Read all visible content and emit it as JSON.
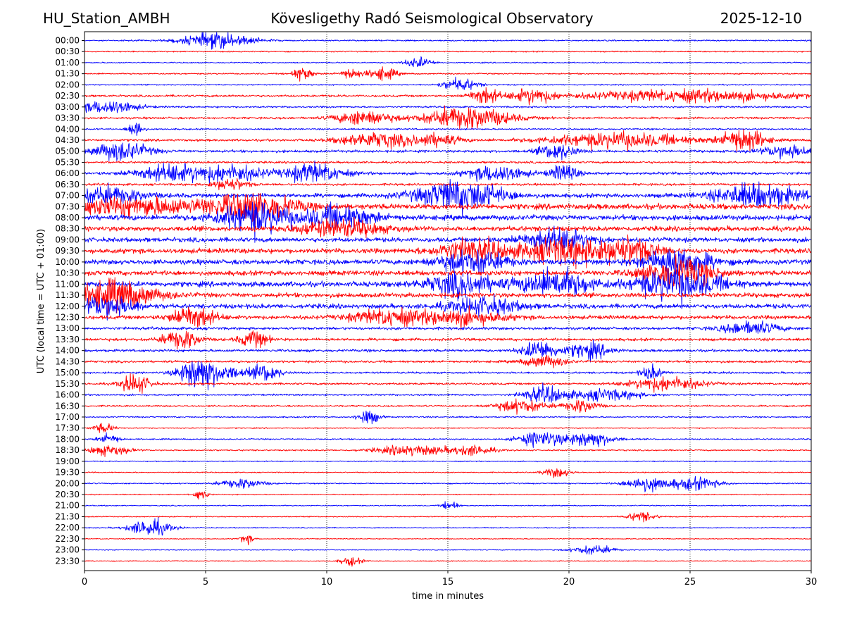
{
  "header": {
    "station": "HU_Station_AMBH",
    "observatory": "Kövesligethy Radó Seismological Observatory",
    "date": "2025-12-10"
  },
  "chart_data": {
    "type": "line",
    "title": "Kövesligethy Radó Seismological Observatory",
    "xlabel": "time in minutes",
    "ylabel": "UTC (local time = UTC + 01:00)",
    "xlim": [
      0,
      30
    ],
    "x_ticks": [
      0,
      5,
      10,
      15,
      20,
      25,
      30
    ],
    "grid": "vertical dotted lines at x ticks",
    "colors": {
      "even_rows": "#0000ff",
      "odd_rows": "#ff0000"
    },
    "rows": [
      {
        "label": "00:00",
        "base_amp": 0.8,
        "bursts": [
          [
            5.5,
            1.0,
            3.0
          ]
        ]
      },
      {
        "label": "00:30",
        "base_amp": 0.7,
        "bursts": []
      },
      {
        "label": "01:00",
        "base_amp": 0.7,
        "bursts": [
          [
            13.8,
            0.4,
            2.0
          ]
        ]
      },
      {
        "label": "01:30",
        "base_amp": 0.8,
        "bursts": [
          [
            9.0,
            0.3,
            2.5
          ],
          [
            11.0,
            0.3,
            2.0
          ],
          [
            12.3,
            0.4,
            2.5
          ]
        ]
      },
      {
        "label": "02:00",
        "base_amp": 0.7,
        "bursts": [
          [
            15.5,
            0.5,
            2.5
          ]
        ]
      },
      {
        "label": "02:30",
        "base_amp": 1.2,
        "bursts": [
          [
            16.5,
            0.4,
            3.0
          ],
          [
            18.5,
            0.6,
            2.5
          ],
          [
            25.0,
            3.0,
            2.0
          ]
        ]
      },
      {
        "label": "03:00",
        "base_amp": 1.0,
        "bursts": [
          [
            1.0,
            0.8,
            2.5
          ]
        ]
      },
      {
        "label": "03:30",
        "base_amp": 1.2,
        "bursts": [
          [
            11.5,
            0.8,
            2.5
          ],
          [
            15.8,
            1.2,
            4.0
          ]
        ]
      },
      {
        "label": "04:00",
        "base_amp": 0.9,
        "bursts": [
          [
            2.1,
            0.2,
            4.0
          ]
        ]
      },
      {
        "label": "04:30",
        "base_amp": 1.3,
        "bursts": [
          [
            12.0,
            1.0,
            2.5
          ],
          [
            14.5,
            0.7,
            2.0
          ],
          [
            22.0,
            2.0,
            2.5
          ],
          [
            27.2,
            0.6,
            4.0
          ]
        ]
      },
      {
        "label": "05:00",
        "base_amp": 1.5,
        "bursts": [
          [
            1.5,
            0.8,
            3.0
          ],
          [
            19.5,
            0.5,
            2.5
          ],
          [
            29.0,
            0.7,
            2.0
          ]
        ]
      },
      {
        "label": "05:30",
        "base_amp": 1.2,
        "bursts": []
      },
      {
        "label": "06:00",
        "base_amp": 1.6,
        "bursts": [
          [
            3.5,
            1.0,
            2.5
          ],
          [
            6.0,
            1.0,
            2.5
          ],
          [
            9.5,
            0.8,
            3.0
          ],
          [
            17.0,
            0.8,
            2.5
          ],
          [
            19.8,
            0.4,
            2.5
          ]
        ]
      },
      {
        "label": "06:30",
        "base_amp": 1.3,
        "bursts": [
          [
            6.0,
            0.5,
            2.0
          ]
        ]
      },
      {
        "label": "07:00",
        "base_amp": 2.4,
        "bursts": [
          [
            15.5,
            1.2,
            4.0
          ],
          [
            27.8,
            1.2,
            3.0
          ],
          [
            1.0,
            1.0,
            2.0
          ]
        ]
      },
      {
        "label": "07:30",
        "base_amp": 3.2,
        "bursts": [
          [
            2.0,
            2.0,
            1.8
          ],
          [
            7.0,
            1.2,
            3.0
          ]
        ]
      },
      {
        "label": "08:00",
        "base_amp": 3.0,
        "bursts": [
          [
            7.0,
            1.0,
            3.5
          ],
          [
            10.5,
            1.0,
            2.5
          ]
        ]
      },
      {
        "label": "08:30",
        "base_amp": 2.8,
        "bursts": [
          [
            10.5,
            1.2,
            2.0
          ]
        ]
      },
      {
        "label": "09:00",
        "base_amp": 2.6,
        "bursts": [
          [
            19.5,
            1.0,
            2.5
          ]
        ]
      },
      {
        "label": "09:30",
        "base_amp": 2.8,
        "bursts": [
          [
            16.0,
            1.0,
            2.5
          ],
          [
            19.8,
            1.2,
            3.0
          ],
          [
            22.5,
            0.8,
            3.0
          ]
        ]
      },
      {
        "label": "10:00",
        "base_amp": 2.8,
        "bursts": [
          [
            16.0,
            1.0,
            2.5
          ],
          [
            24.5,
            1.0,
            3.0
          ]
        ]
      },
      {
        "label": "10:30",
        "base_amp": 2.8,
        "bursts": [
          [
            24.5,
            1.0,
            3.5
          ]
        ]
      },
      {
        "label": "11:00",
        "base_amp": 3.0,
        "bursts": [
          [
            15.5,
            1.0,
            2.5
          ],
          [
            19.5,
            1.0,
            3.0
          ],
          [
            24.5,
            1.2,
            3.5
          ]
        ]
      },
      {
        "label": "11:30",
        "base_amp": 2.6,
        "bursts": [
          [
            1.2,
            1.2,
            3.5
          ]
        ]
      },
      {
        "label": "12:00",
        "base_amp": 2.6,
        "bursts": [
          [
            1.0,
            0.8,
            2.5
          ],
          [
            16.5,
            1.0,
            2.0
          ]
        ]
      },
      {
        "label": "12:30",
        "base_amp": 2.2,
        "bursts": [
          [
            4.5,
            0.6,
            3.0
          ],
          [
            12.5,
            1.0,
            2.0
          ],
          [
            15.5,
            1.2,
            2.0
          ]
        ]
      },
      {
        "label": "13:00",
        "base_amp": 1.6,
        "bursts": [
          [
            27.5,
            0.8,
            2.0
          ]
        ]
      },
      {
        "label": "13:30",
        "base_amp": 1.6,
        "bursts": [
          [
            4.0,
            0.5,
            3.0
          ],
          [
            7.0,
            0.4,
            2.5
          ]
        ]
      },
      {
        "label": "14:00",
        "base_amp": 1.5,
        "bursts": [
          [
            18.8,
            0.5,
            3.0
          ],
          [
            20.8,
            0.6,
            2.5
          ]
        ]
      },
      {
        "label": "14:30",
        "base_amp": 1.3,
        "bursts": [
          [
            19.0,
            0.6,
            2.0
          ]
        ]
      },
      {
        "label": "15:00",
        "base_amp": 1.1,
        "bursts": [
          [
            4.6,
            0.5,
            5.0
          ],
          [
            5.5,
            0.8,
            2.5
          ],
          [
            7.5,
            0.4,
            3.0
          ],
          [
            23.4,
            0.3,
            2.5
          ]
        ]
      },
      {
        "label": "15:30",
        "base_amp": 1.2,
        "bursts": [
          [
            2.1,
            0.4,
            3.5
          ],
          [
            24.0,
            1.0,
            2.5
          ]
        ]
      },
      {
        "label": "16:00",
        "base_amp": 1.0,
        "bursts": [
          [
            19.0,
            0.6,
            3.0
          ],
          [
            21.5,
            1.0,
            2.0
          ]
        ]
      },
      {
        "label": "16:30",
        "base_amp": 0.9,
        "bursts": [
          [
            18.0,
            0.7,
            2.5
          ],
          [
            20.5,
            0.5,
            2.5
          ]
        ]
      },
      {
        "label": "17:00",
        "base_amp": 0.8,
        "bursts": [
          [
            11.7,
            0.3,
            3.0
          ]
        ]
      },
      {
        "label": "17:30",
        "base_amp": 0.6,
        "bursts": [
          [
            0.8,
            0.3,
            2.0
          ]
        ]
      },
      {
        "label": "18:00",
        "base_amp": 0.8,
        "bursts": [
          [
            1.0,
            0.3,
            2.0
          ],
          [
            18.8,
            0.6,
            3.0
          ],
          [
            20.8,
            0.7,
            3.0
          ]
        ]
      },
      {
        "label": "18:30",
        "base_amp": 0.8,
        "bursts": [
          [
            1.0,
            0.6,
            2.0
          ],
          [
            13.5,
            1.0,
            2.0
          ],
          [
            16.0,
            0.6,
            2.0
          ]
        ]
      },
      {
        "label": "19:00",
        "base_amp": 0.6,
        "bursts": []
      },
      {
        "label": "19:30",
        "base_amp": 0.6,
        "bursts": [
          [
            19.5,
            0.4,
            2.0
          ]
        ]
      },
      {
        "label": "20:00",
        "base_amp": 0.7,
        "bursts": [
          [
            6.5,
            0.6,
            2.0
          ],
          [
            23.2,
            0.6,
            3.0
          ],
          [
            25.2,
            0.7,
            2.5
          ]
        ]
      },
      {
        "label": "20:30",
        "base_amp": 0.6,
        "bursts": [
          [
            4.8,
            0.2,
            2.0
          ]
        ]
      },
      {
        "label": "21:00",
        "base_amp": 0.6,
        "bursts": [
          [
            15.1,
            0.2,
            2.5
          ]
        ]
      },
      {
        "label": "21:30",
        "base_amp": 0.6,
        "bursts": [
          [
            23.0,
            0.4,
            2.0
          ]
        ]
      },
      {
        "label": "22:00",
        "base_amp": 0.6,
        "bursts": [
          [
            2.7,
            0.6,
            3.5
          ]
        ]
      },
      {
        "label": "22:30",
        "base_amp": 0.5,
        "bursts": [
          [
            6.7,
            0.2,
            2.0
          ]
        ]
      },
      {
        "label": "23:00",
        "base_amp": 0.5,
        "bursts": [
          [
            21.0,
            0.6,
            2.0
          ]
        ]
      },
      {
        "label": "23:30",
        "base_amp": 0.5,
        "bursts": [
          [
            11.0,
            0.3,
            2.0
          ]
        ]
      }
    ]
  }
}
